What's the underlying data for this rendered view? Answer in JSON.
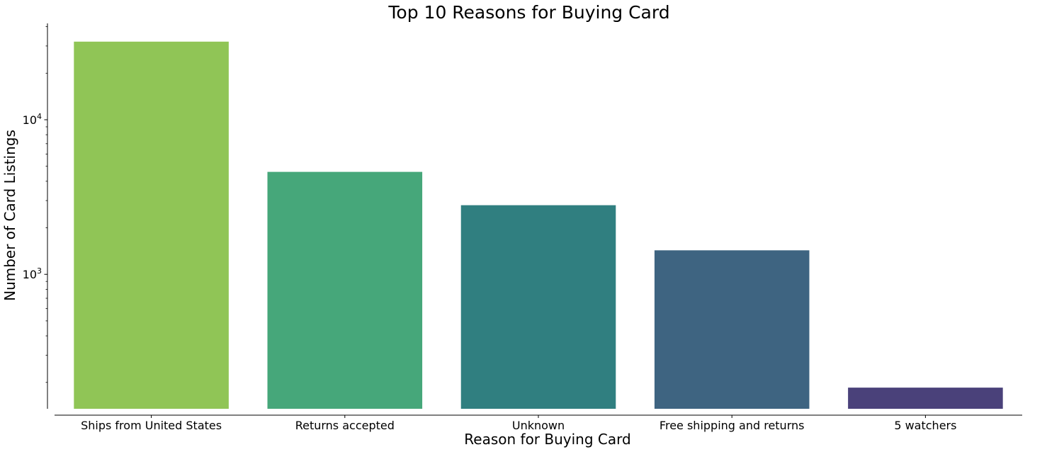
{
  "chart_data": {
    "type": "bar",
    "title": "Top 10 Reasons for Buying Card",
    "xlabel": "Reason for Buying Card",
    "ylabel": "Number of Card Listings",
    "yscale": "log",
    "ylim": [
      135,
      42000
    ],
    "yticks": [
      {
        "value": 1000,
        "base": "10",
        "exp": "3"
      },
      {
        "value": 10000,
        "base": "10",
        "exp": "4"
      }
    ],
    "grid": false,
    "legend": "none",
    "categories": [
      "Ships from United States",
      "Returns accepted",
      "Unknown",
      "Free shipping and returns",
      "5 watchers"
    ],
    "values": [
      32000,
      4600,
      2800,
      1430,
      185
    ],
    "colors": [
      "#90c556",
      "#46a77a",
      "#307f80",
      "#3e6481",
      "#4a417a"
    ]
  }
}
